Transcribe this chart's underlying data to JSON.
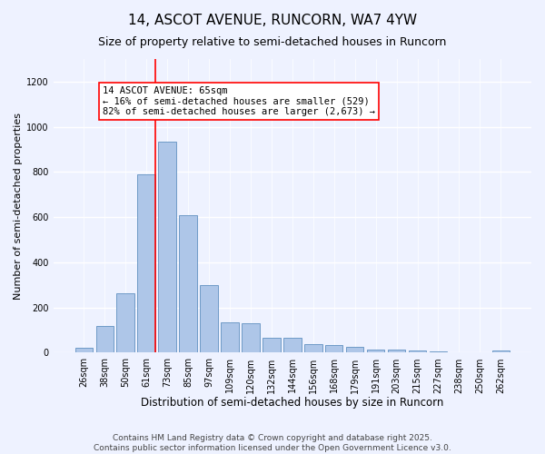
{
  "title": "14, ASCOT AVENUE, RUNCORN, WA7 4YW",
  "subtitle": "Size of property relative to semi-detached houses in Runcorn",
  "xlabel": "Distribution of semi-detached houses by size in Runcorn",
  "ylabel": "Number of semi-detached properties",
  "bar_labels": [
    "26sqm",
    "38sqm",
    "50sqm",
    "61sqm",
    "73sqm",
    "85sqm",
    "97sqm",
    "109sqm",
    "120sqm",
    "132sqm",
    "144sqm",
    "156sqm",
    "168sqm",
    "179sqm",
    "191sqm",
    "203sqm",
    "215sqm",
    "227sqm",
    "238sqm",
    "250sqm",
    "262sqm"
  ],
  "bar_values": [
    20,
    120,
    265,
    790,
    935,
    610,
    300,
    135,
    130,
    65,
    65,
    40,
    35,
    25,
    15,
    12,
    8,
    5,
    3,
    2,
    8
  ],
  "bar_color": "#aec6e8",
  "bar_edge_color": "#6090c0",
  "vline_x_idx": 3,
  "vline_color": "red",
  "annotation_text": "14 ASCOT AVENUE: 65sqm\n← 16% of semi-detached houses are smaller (529)\n82% of semi-detached houses are larger (2,673) →",
  "annotation_box_color": "white",
  "annotation_box_edge": "red",
  "ylim": [
    0,
    1300
  ],
  "yticks": [
    0,
    200,
    400,
    600,
    800,
    1000,
    1200
  ],
  "footer": "Contains HM Land Registry data © Crown copyright and database right 2025.\nContains public sector information licensed under the Open Government Licence v3.0.",
  "bg_color": "#eef2ff",
  "grid_color": "white",
  "title_fontsize": 11,
  "subtitle_fontsize": 9,
  "xlabel_fontsize": 8.5,
  "ylabel_fontsize": 8,
  "tick_fontsize": 7,
  "footer_fontsize": 6.5,
  "annotation_fontsize": 7.5
}
